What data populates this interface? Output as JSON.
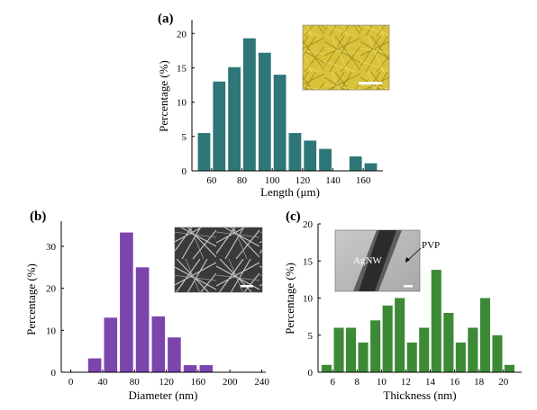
{
  "figure": {
    "panel_labels": [
      "(a)",
      "(b)",
      "(c)"
    ]
  },
  "chart_data": [
    {
      "type": "bar",
      "panel": "(a)",
      "xlabel": "Length (μm)",
      "ylabel": "Percentage (%)",
      "x": [
        55,
        65,
        75,
        85,
        95,
        105,
        115,
        125,
        135,
        155,
        165
      ],
      "values": [
        5.5,
        13.0,
        15.1,
        19.3,
        17.2,
        14.0,
        5.5,
        4.4,
        3.2,
        2.1,
        1.1
      ],
      "xlim": [
        47,
        173
      ],
      "ylim": [
        0,
        22
      ],
      "xticks": [
        60,
        80,
        100,
        120,
        140,
        160
      ],
      "yticks": [
        0,
        5,
        10,
        15,
        20
      ],
      "bar_width": 8.2,
      "color": "#2e7677",
      "inset": {
        "description": "yellow nanowire network micrograph",
        "scale_bar": true
      }
    },
    {
      "type": "bar",
      "panel": "(b)",
      "xlabel": "Diameter (nm)",
      "ylabel": "Percentage (%)",
      "x": [
        30,
        50,
        70,
        90,
        110,
        130,
        150,
        170
      ],
      "values": [
        3.3,
        13.0,
        33.3,
        25.0,
        13.3,
        8.3,
        1.7,
        1.7
      ],
      "xlim": [
        -12,
        245
      ],
      "ylim": [
        0,
        36
      ],
      "xticks": [
        0,
        40,
        80,
        120,
        160,
        200,
        240
      ],
      "yticks": [
        0,
        10,
        20,
        30
      ],
      "bar_width": 16.5,
      "color": "#7b45ad",
      "inset": {
        "description": "SEM image of silver nanowires",
        "scale_bar": true
      }
    },
    {
      "type": "bar",
      "panel": "(c)",
      "xlabel": "Thickness (nm)",
      "ylabel": "Percentage (%)",
      "x": [
        5.5,
        6.5,
        7.5,
        8.5,
        9.5,
        10.5,
        11.5,
        12.5,
        13.5,
        14.5,
        15.5,
        16.5,
        17.5,
        18.5,
        19.5,
        20.5
      ],
      "values": [
        1.0,
        6.0,
        6.0,
        4.0,
        7.0,
        9.0,
        10.0,
        4.0,
        6.0,
        13.8,
        8.0,
        4.0,
        6.0,
        10.0,
        5.0,
        1.0
      ],
      "xlim": [
        4.8,
        21.5
      ],
      "ylim": [
        0,
        20
      ],
      "xticks": [
        6,
        8,
        10,
        12,
        14,
        16,
        18,
        20
      ],
      "yticks": [
        0,
        5,
        10,
        15,
        20
      ],
      "bar_width": 0.82,
      "color": "#3c8a36",
      "inset": {
        "description": "TEM image of a single nanowire",
        "labels": [
          "AgNW",
          "PVP"
        ],
        "scale_bar": true
      }
    }
  ]
}
